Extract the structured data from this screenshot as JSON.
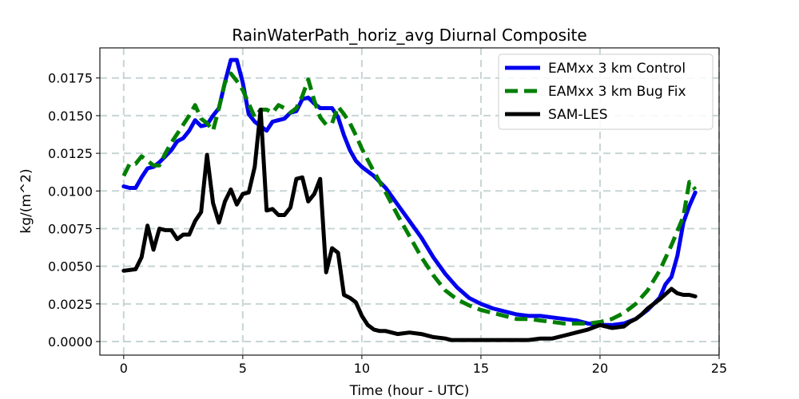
{
  "chart_data": {
    "type": "line",
    "title": "RainWaterPath_horiz_avg Diurnal Composite",
    "xlabel": "Time (hour - UTC)",
    "ylabel": "kg/(m^2)",
    "xlim": [
      -1.0,
      25.0
    ],
    "ylim": [
      -0.0009,
      0.0195
    ],
    "x_ticks": [
      0,
      5,
      10,
      15,
      20,
      25
    ],
    "x_tick_labels": [
      "0",
      "5",
      "10",
      "15",
      "20",
      "25"
    ],
    "y_ticks": [
      0.0,
      0.0025,
      0.005,
      0.0075,
      0.01,
      0.0125,
      0.015,
      0.0175
    ],
    "y_tick_labels": [
      "0.0000",
      "0.0025",
      "0.0050",
      "0.0075",
      "0.0100",
      "0.0125",
      "0.0150",
      "0.0175"
    ],
    "grid": true,
    "legend_position": "top-right",
    "series": [
      {
        "name": "EAMxx 3 km Control",
        "color": "#0000ee",
        "style": "solid",
        "x": [
          0,
          0.25,
          0.5,
          0.75,
          1.0,
          1.25,
          1.5,
          1.75,
          2.0,
          2.25,
          2.5,
          2.75,
          3.0,
          3.25,
          3.5,
          3.75,
          4.0,
          4.25,
          4.5,
          4.75,
          5.0,
          5.25,
          5.5,
          5.75,
          6.0,
          6.25,
          6.5,
          6.75,
          7.0,
          7.25,
          7.5,
          7.75,
          8.0,
          8.25,
          8.5,
          8.75,
          9.0,
          9.25,
          9.5,
          9.75,
          10.0,
          10.5,
          11.0,
          11.5,
          12.0,
          12.5,
          13.0,
          13.5,
          14.0,
          14.5,
          15.0,
          15.5,
          16.0,
          16.5,
          17.0,
          17.5,
          18.0,
          18.5,
          19.0,
          19.5,
          20.0,
          20.5,
          21.0,
          21.5,
          22.0,
          22.5,
          22.75,
          23.0,
          23.25,
          23.5,
          23.75,
          24.0
        ],
        "y": [
          0.0103,
          0.0102,
          0.0102,
          0.0109,
          0.0115,
          0.0116,
          0.0119,
          0.0123,
          0.0127,
          0.0133,
          0.0135,
          0.014,
          0.0147,
          0.0143,
          0.0144,
          0.015,
          0.0155,
          0.0172,
          0.0187,
          0.0187,
          0.0172,
          0.0151,
          0.0146,
          0.0143,
          0.014,
          0.0146,
          0.0147,
          0.0148,
          0.0152,
          0.0153,
          0.0161,
          0.0162,
          0.0158,
          0.0155,
          0.0155,
          0.0155,
          0.0149,
          0.0137,
          0.0127,
          0.012,
          0.0116,
          0.011,
          0.0102,
          0.0091,
          0.008,
          0.0069,
          0.0056,
          0.0045,
          0.0036,
          0.0029,
          0.0025,
          0.0022,
          0.002,
          0.0018,
          0.0017,
          0.0017,
          0.0016,
          0.0015,
          0.0014,
          0.0012,
          0.0011,
          0.0011,
          0.0012,
          0.0015,
          0.0021,
          0.0029,
          0.0038,
          0.0043,
          0.0057,
          0.0079,
          0.009,
          0.0099
        ]
      },
      {
        "name": "EAMxx 3 km Bug Fix",
        "color": "#007f00",
        "style": "dashed",
        "x": [
          0,
          0.25,
          0.5,
          0.75,
          1.0,
          1.25,
          1.5,
          1.75,
          2.0,
          2.25,
          2.5,
          2.75,
          3.0,
          3.25,
          3.5,
          3.75,
          4.0,
          4.25,
          4.5,
          4.75,
          5.0,
          5.25,
          5.5,
          5.75,
          6.0,
          6.25,
          6.5,
          6.75,
          7.0,
          7.25,
          7.5,
          7.75,
          8.0,
          8.25,
          8.5,
          8.75,
          9.0,
          9.25,
          9.5,
          9.75,
          10.0,
          10.5,
          11.0,
          11.5,
          12.0,
          12.5,
          13.0,
          13.5,
          14.0,
          14.5,
          15.0,
          15.5,
          16.0,
          16.5,
          17.0,
          17.5,
          18.0,
          18.5,
          19.0,
          19.5,
          20.0,
          20.5,
          21.0,
          21.5,
          22.0,
          22.5,
          23.0,
          23.5,
          23.75,
          24.0
        ],
        "y": [
          0.011,
          0.0118,
          0.0118,
          0.0123,
          0.012,
          0.0117,
          0.0117,
          0.0125,
          0.0132,
          0.0138,
          0.0144,
          0.015,
          0.0157,
          0.0148,
          0.0145,
          0.014,
          0.0155,
          0.0172,
          0.0178,
          0.0173,
          0.0167,
          0.0158,
          0.0149,
          0.0154,
          0.0154,
          0.0152,
          0.0157,
          0.0155,
          0.0152,
          0.0155,
          0.0163,
          0.0174,
          0.016,
          0.0149,
          0.0144,
          0.0145,
          0.0156,
          0.0151,
          0.0145,
          0.0137,
          0.0128,
          0.0113,
          0.0099,
          0.0084,
          0.007,
          0.0056,
          0.0044,
          0.0034,
          0.0028,
          0.0024,
          0.0021,
          0.0019,
          0.0017,
          0.0015,
          0.0015,
          0.0014,
          0.0013,
          0.0012,
          0.0012,
          0.0012,
          0.0013,
          0.0015,
          0.0019,
          0.0025,
          0.0034,
          0.0047,
          0.0064,
          0.0083,
          0.0106,
          0.0101
        ]
      },
      {
        "name": "SAM-LES",
        "color": "#000000",
        "style": "solid",
        "x": [
          0,
          0.5,
          0.75,
          1.0,
          1.25,
          1.5,
          1.75,
          2.0,
          2.25,
          2.5,
          2.75,
          3.0,
          3.25,
          3.5,
          3.75,
          4.0,
          4.25,
          4.5,
          4.75,
          5.0,
          5.25,
          5.5,
          5.75,
          6.0,
          6.25,
          6.5,
          6.75,
          7.0,
          7.25,
          7.5,
          7.75,
          8.0,
          8.25,
          8.5,
          8.75,
          9.0,
          9.25,
          9.5,
          9.75,
          10.0,
          10.25,
          10.5,
          10.75,
          11.0,
          11.5,
          12.0,
          12.5,
          13.0,
          13.5,
          13.75,
          14.0,
          14.25,
          14.5,
          15.0,
          15.5,
          16.0,
          16.5,
          17.0,
          17.5,
          18.0,
          18.5,
          19.0,
          19.5,
          20.0,
          20.5,
          21.0,
          21.25,
          21.5,
          21.75,
          22.0,
          22.5,
          23.0,
          23.25,
          23.5,
          23.75,
          24.0
        ],
        "y": [
          0.0047,
          0.0048,
          0.0056,
          0.0077,
          0.0061,
          0.0075,
          0.0074,
          0.0074,
          0.0068,
          0.0071,
          0.0071,
          0.008,
          0.0086,
          0.0124,
          0.0092,
          0.0079,
          0.0093,
          0.0101,
          0.0091,
          0.0098,
          0.0099,
          0.0116,
          0.0154,
          0.0087,
          0.0088,
          0.0084,
          0.0084,
          0.0089,
          0.0108,
          0.0109,
          0.0093,
          0.0098,
          0.0108,
          0.0046,
          0.0062,
          0.0059,
          0.0031,
          0.0029,
          0.0026,
          0.0017,
          0.0011,
          0.0008,
          0.0007,
          0.0007,
          0.0005,
          0.0006,
          0.0005,
          0.0003,
          0.0002,
          0.0001,
          0.0001,
          0.0001,
          0.0001,
          0.0001,
          0.0001,
          0.0001,
          0.0001,
          0.0001,
          0.0002,
          0.0002,
          0.0004,
          0.0006,
          0.0008,
          0.0011,
          0.0009,
          0.001,
          0.0013,
          0.0015,
          0.0018,
          0.0022,
          0.0028,
          0.0035,
          0.0032,
          0.0031,
          0.0031,
          0.003
        ]
      }
    ]
  }
}
